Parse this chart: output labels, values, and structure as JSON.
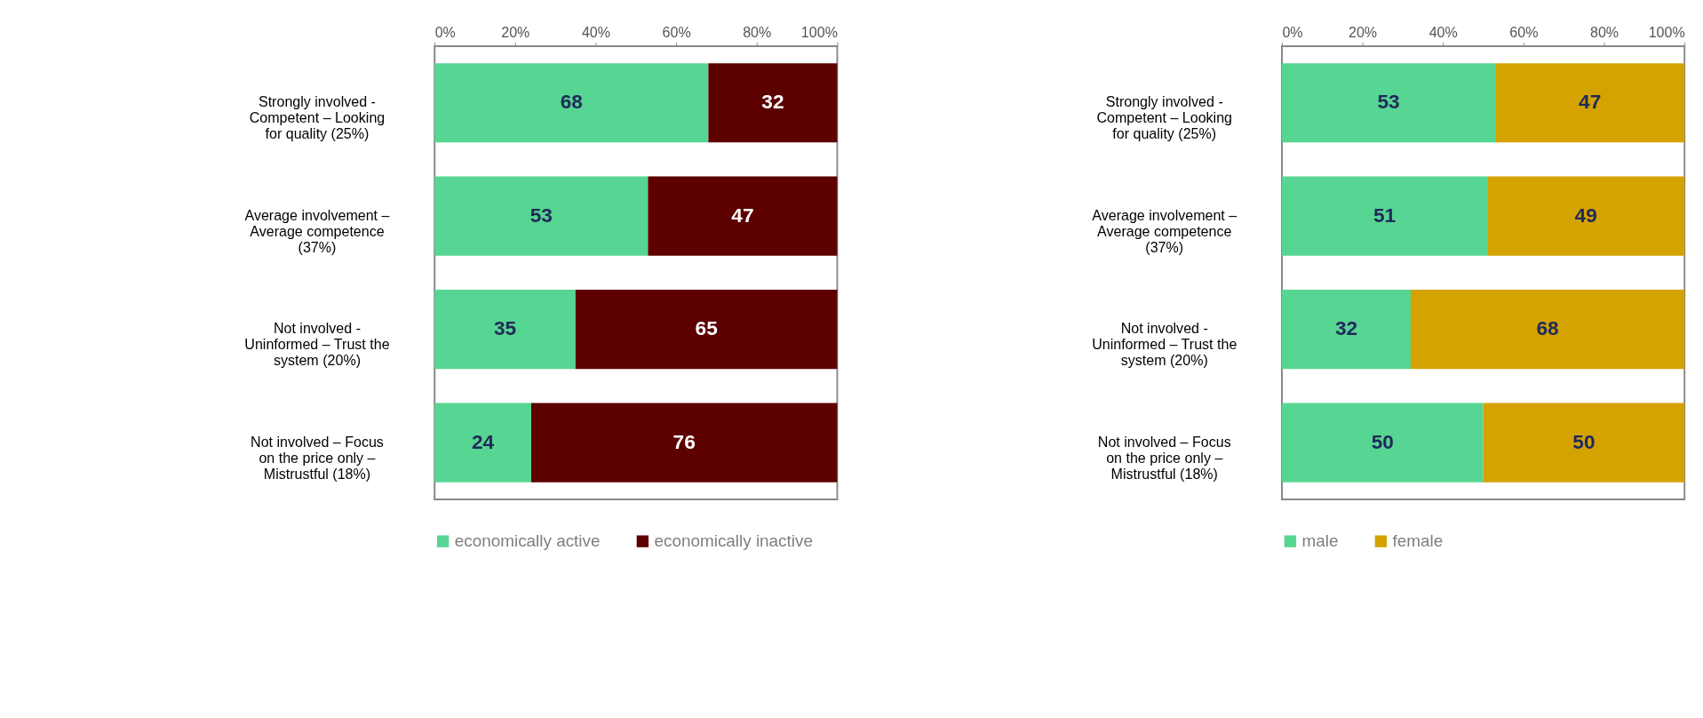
{
  "chart_data": [
    {
      "type": "bar",
      "orientation": "horizontal",
      "stacked": true,
      "categories": [
        "Strongly involved - Competent – Looking for quality (25%)",
        "Average involvement – Average competence (37%)",
        "Not involved - Uninformed – Trust the system (20%)",
        "Not involved – Focus on the price only – Mistrustful (18%)"
      ],
      "series": [
        {
          "name": "economically active",
          "color": "#57d592",
          "values": [
            68,
            53,
            35,
            24
          ]
        },
        {
          "name": "economically inactive",
          "color": "#5c0000",
          "values": [
            32,
            47,
            65,
            76
          ]
        }
      ],
      "xlim": [
        0,
        100
      ],
      "xticks": [
        {
          "value": 0,
          "label": "0%"
        },
        {
          "value": 20,
          "label": "20%"
        },
        {
          "value": 40,
          "label": "40%"
        },
        {
          "value": 60,
          "label": "60%"
        },
        {
          "value": 80,
          "label": "80%"
        },
        {
          "value": 100,
          "label": "100%"
        }
      ],
      "data_labels": true,
      "legend": "bottom",
      "grid": false
    },
    {
      "type": "bar",
      "orientation": "horizontal",
      "stacked": true,
      "categories": [
        "Strongly involved - Competent – Looking for quality (25%)",
        "Average involvement – Average competence (37%)",
        "Not involved - Uninformed – Trust the system (20%)",
        "Not involved – Focus on the price only – Mistrustful (18%)"
      ],
      "series": [
        {
          "name": "male",
          "color": "#57d592",
          "values": [
            53,
            51,
            32,
            50
          ]
        },
        {
          "name": "female",
          "color": "#d4a300",
          "values": [
            47,
            49,
            68,
            50
          ]
        }
      ],
      "xlim": [
        0,
        100
      ],
      "xticks": [
        {
          "value": 0,
          "label": "0%"
        },
        {
          "value": 20,
          "label": "20%"
        },
        {
          "value": 40,
          "label": "40%"
        },
        {
          "value": 60,
          "label": "60%"
        },
        {
          "value": 80,
          "label": "80%"
        },
        {
          "value": 100,
          "label": "100%"
        }
      ],
      "data_labels": true,
      "legend": "bottom",
      "grid": false
    }
  ]
}
